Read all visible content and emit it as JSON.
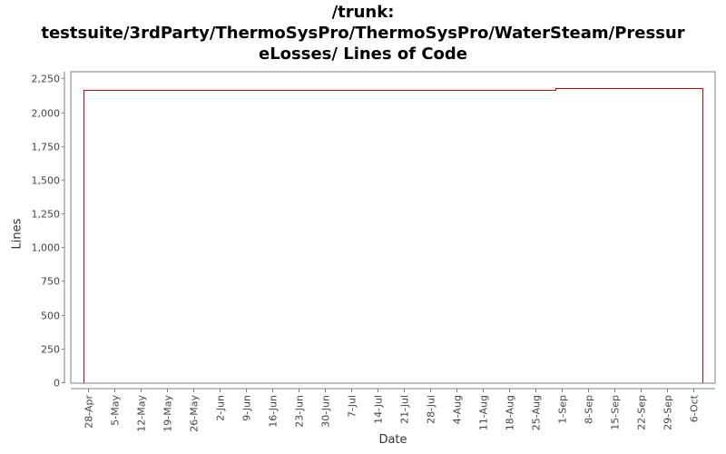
{
  "title": {
    "line1": "/trunk:",
    "line2": "testsuite/3rdParty/ThermoSysPro/ThermoSysPro/WaterSteam/Pressur",
    "line3": "eLosses/ Lines of Code"
  },
  "colors": {
    "series": "#cc0000",
    "axis": "#808080",
    "tick_text": "#444444",
    "background": "#ffffff"
  },
  "chart_data": {
    "type": "line",
    "title": "/trunk: testsuite/3rdParty/ThermoSysPro/ThermoSysPro/WaterSteam/PressureLosses/ Lines of Code",
    "xlabel": "Date",
    "ylabel": "Lines",
    "ylim": [
      0,
      2300
    ],
    "yticks": [
      0,
      250,
      500,
      750,
      1000,
      1250,
      1500,
      1750,
      2000,
      2250
    ],
    "ytick_labels": [
      "0",
      "250",
      "500",
      "750",
      "1,000",
      "1,250",
      "1,500",
      "1,750",
      "2,000",
      "2,250"
    ],
    "xtick_labels": [
      "28-Apr",
      "5-May",
      "12-May",
      "19-May",
      "26-May",
      "2-Jun",
      "9-Jun",
      "16-Jun",
      "23-Jun",
      "30-Jun",
      "7-Jul",
      "14-Jul",
      "21-Jul",
      "28-Jul",
      "4-Aug",
      "11-Aug",
      "18-Aug",
      "25-Aug",
      "1-Sep",
      "8-Sep",
      "15-Sep",
      "22-Sep",
      "29-Sep",
      "6-Oct"
    ],
    "grid": false,
    "legend": null,
    "series": [
      {
        "name": "Lines of Code",
        "step": true,
        "points": [
          {
            "x": "28-Apr",
            "y": 0
          },
          {
            "x": "28-Apr",
            "y": 2163
          },
          {
            "x": "31-Aug",
            "y": 2163
          },
          {
            "x": "31-Aug",
            "y": 2177
          },
          {
            "x": "9-Oct",
            "y": 2177
          },
          {
            "x": "9-Oct",
            "y": 0
          }
        ]
      }
    ]
  }
}
